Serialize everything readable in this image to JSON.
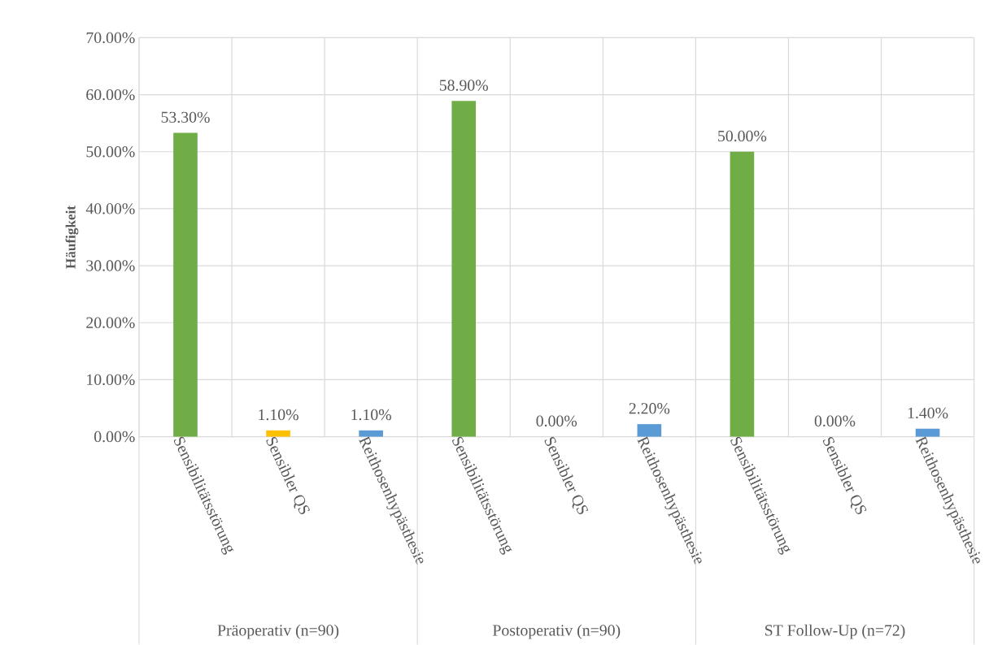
{
  "chart_data": {
    "type": "bar",
    "ylabel": "Häufigkeit",
    "categories": [
      "Sensibilitätsstörung",
      "Sensibler QS",
      "Reithosenhypästhesie",
      "Sensibilitätsstörung",
      "Sensibler QS",
      "Reithosenhypästhesie",
      "Sensibilitätsstörung",
      "Sensibler QS",
      "Reithosenhypästhesie"
    ],
    "values": [
      53.3,
      1.1,
      1.1,
      58.9,
      0,
      2.2,
      50,
      0,
      1.4
    ],
    "colors": [
      "#70ad47",
      "#ffc000",
      "#5b9bd5",
      "#70ad47",
      "#ffc000",
      "#5b9bd5",
      "#70ad47",
      "#ffc000",
      "#5b9bd5"
    ],
    "value_labels": [
      "53.30%",
      "1.10%",
      "1.10%",
      "58.90%",
      "0.00%",
      "2.20%",
      "50.00%",
      "0.00%",
      "1.40%"
    ],
    "ylim": [
      0,
      70
    ],
    "yticks": [
      {
        "value": 0,
        "label": "0.00%"
      },
      {
        "value": 10,
        "label": "10.00%"
      },
      {
        "value": 20,
        "label": "20.00%"
      },
      {
        "value": 30,
        "label": "30.00%"
      },
      {
        "value": 40,
        "label": "40.00%"
      },
      {
        "value": 50,
        "label": "50.00%"
      },
      {
        "value": 60,
        "label": "60.00%"
      },
      {
        "value": 70,
        "label": "70.00%"
      }
    ],
    "grid": true,
    "annotations": [
      "Präoperativ (n=90)",
      "Postoperativ (n=90)",
      "ST Follow-Up (n=72)"
    ]
  }
}
